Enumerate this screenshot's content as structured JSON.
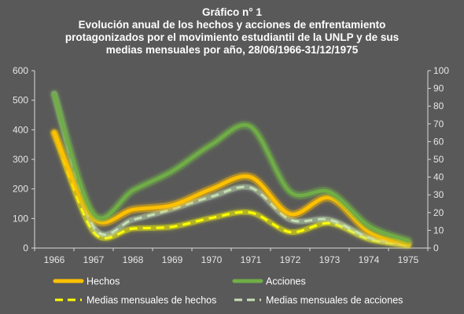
{
  "chart_data": {
    "type": "line",
    "title_lines": [
      "Gráfico n° 1",
      "Evolución anual de los hechos y acciones de enfrentamiento",
      "protagonizados por el movimiento estudiantil de la UNLP y de sus",
      "medias mensuales por año, 28/06/1966-31/12/1975"
    ],
    "categories": [
      "1966",
      "1967",
      "1968",
      "1969",
      "1970",
      "1971",
      "1972",
      "1973",
      "1974",
      "1975"
    ],
    "y_left": {
      "min": 0,
      "max": 600,
      "ticks": [
        "0",
        "100",
        "200",
        "300",
        "400",
        "500",
        "600"
      ]
    },
    "y_right": {
      "min": 0,
      "max": 100,
      "ticks": [
        "0",
        "10",
        "20",
        "30",
        "40",
        "50",
        "60",
        "70",
        "80",
        "90",
        "100"
      ]
    },
    "grid": false,
    "legend_position": "bottom",
    "series": [
      {
        "name": "Hechos",
        "axis": "left",
        "style": "solid",
        "color": "#FFC000",
        "values": [
          390,
          100,
          130,
          145,
          200,
          240,
          115,
          170,
          55,
          15
        ]
      },
      {
        "name": "Acciones",
        "axis": "left",
        "style": "solid",
        "color": "#70AD47",
        "values": [
          520,
          115,
          195,
          260,
          350,
          410,
          190,
          190,
          75,
          25
        ]
      },
      {
        "name": "Medias mensuales de hechos",
        "axis": "right",
        "style": "dashed",
        "color": "#FFFF00",
        "values": [
          65,
          9,
          11,
          12,
          17,
          20,
          9,
          14,
          5,
          1.5
        ]
      },
      {
        "name": "Medias mensuales de acciones",
        "axis": "right",
        "style": "dashed",
        "color": "#C5E0B4",
        "values": [
          87,
          12,
          16,
          22,
          29,
          34,
          16,
          16,
          6,
          2
        ]
      }
    ]
  }
}
